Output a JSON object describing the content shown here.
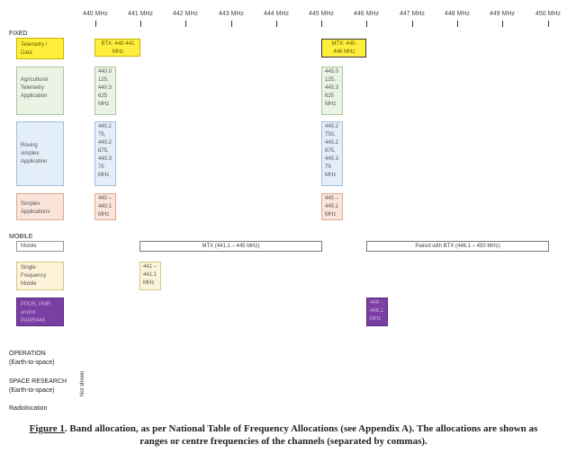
{
  "axis": {
    "ticks": [
      "440 MHz",
      "441 MHz",
      "442 MHz",
      "443 MHz",
      "444 MHz",
      "445 MHz",
      "446 MHz",
      "447 MHz",
      "448 MHz",
      "449 MHz",
      "450 MHz"
    ]
  },
  "sections": {
    "fixed": "FIXED",
    "mobile": "MOBILE",
    "operation": "OPERATION\n(Earth-to-space)",
    "space_research": "SPACE RESEARCH\n(Earth-to-space)",
    "radiolocation": "Radiolocation",
    "not_shown": "Not shown"
  },
  "fixed_apps": {
    "telemetry": "Telemetry /\nData",
    "agricultural": "Agricultural\nTelemetry\nApplication",
    "roving": "Roving\nsimplex\nApplication",
    "simplex": "Simplex\nApplications"
  },
  "fixed_channels": {
    "btx_low": "BTX: 440-441\nMHz",
    "mtx_high": "MTX: 445-\n446 MHz",
    "agri_low": "440.0\n125,\n440.3\n625\nMHz",
    "agri_high": "445.0\n125,\n445.3\n625\nMHz",
    "roving_low": "440.2\n75,\n440.2\n875,\n440.3\n75\nMHz",
    "roving_high": "445.2\n750,\n445.2\n875,\n445.3\n75\nMHz",
    "simplex_low": "440 –\n440.1\nMHz",
    "simplex_high": "445 –\n445.1\nMHz"
  },
  "mobile_apps": {
    "mobile": "Mobile",
    "single_freq": "Single\nFrequency\nMobile",
    "ppdr": "PPDR, PMR\nand/or\nPAMR446"
  },
  "mobile_channels": {
    "mtx_bar": "MTX (441.1 – 445 MHz)",
    "paired_bar": "Paired with BTX (446.1 – 450 MHz)",
    "single_freq": "441 –\n441.1\nMHz",
    "pmr446": "446 –\n446.1\nMHz"
  },
  "caption": {
    "prefix": "Figure 1",
    "text": ". Band allocation, as per National Table of Frequency Allocations (see Appendix A). The allocations are shown as ranges or centre frequencies of the channels (separated by commas)."
  },
  "colors": {
    "yellow": "#ffef3c",
    "green": "#eaf3e4",
    "blue": "#e3eef9",
    "peach": "#fbe4d9",
    "cream": "#fdf3d8",
    "purple": "#7a3ea4"
  }
}
